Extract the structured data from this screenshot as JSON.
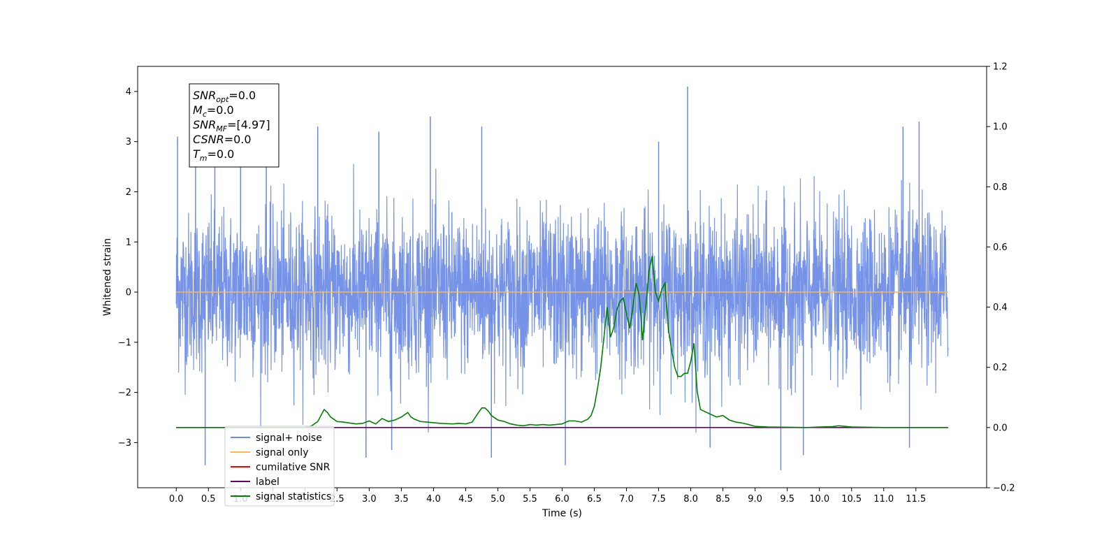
{
  "chart_data": {
    "type": "line",
    "xlabel": "Time (s)",
    "ylabel": "Whitened strain",
    "xlim": [
      -0.6,
      12.6
    ],
    "ylim": [
      -3.9,
      4.5
    ],
    "y2lim": [
      -0.2,
      1.2
    ],
    "x_ticks": [
      0.0,
      0.5,
      1.0,
      1.5,
      2.0,
      2.5,
      3.0,
      3.5,
      4.0,
      4.5,
      5.0,
      5.5,
      6.0,
      6.5,
      7.0,
      7.5,
      8.0,
      8.5,
      9.0,
      9.5,
      10.0,
      10.5,
      11.0,
      11.5
    ],
    "x_tick_labels": [
      "0.0",
      "0.5",
      "1.0",
      "1.5",
      "2.0",
      "2.5",
      "3.0",
      "3.5",
      "4.0",
      "4.5",
      "5.0",
      "5.5",
      "6.0",
      "6.5",
      "7.0",
      "7.5",
      "8.0",
      "8.5",
      "9.0",
      "9.5",
      "10.0",
      "10.5",
      "11.0",
      "11.5"
    ],
    "y_ticks": [
      -3,
      -2,
      -1,
      0,
      1,
      2,
      3,
      4
    ],
    "y_tick_labels": [
      "−3",
      "−2",
      "−1",
      "0",
      "1",
      "2",
      "3",
      "4"
    ],
    "y2_ticks": [
      -0.2,
      0.0,
      0.2,
      0.4,
      0.6,
      0.8,
      1.0,
      1.2
    ],
    "y2_tick_labels": [
      "−0.2",
      "0.0",
      "0.2",
      "0.4",
      "0.6",
      "0.8",
      "1.0",
      "1.2"
    ],
    "legend_placement": "lower-left",
    "grid": false,
    "series": [
      {
        "name": "signal+ noise",
        "axis": "left",
        "color": "#6a8ae6",
        "style": "noise",
        "x_range": [
          0.0,
          12.0
        ],
        "spikes": [
          {
            "x": 0.02,
            "y": 3.1
          },
          {
            "x": 0.3,
            "y": 2.9
          },
          {
            "x": 0.45,
            "y": -3.45
          },
          {
            "x": 0.6,
            "y": 2.8
          },
          {
            "x": 1.0,
            "y": 3.2
          },
          {
            "x": 1.4,
            "y": 3.1
          },
          {
            "x": 2.2,
            "y": 3.3
          },
          {
            "x": 2.95,
            "y": -3.3
          },
          {
            "x": 3.15,
            "y": 3.2
          },
          {
            "x": 3.35,
            "y": -3.15
          },
          {
            "x": 3.95,
            "y": 3.5
          },
          {
            "x": 4.75,
            "y": 3.3
          },
          {
            "x": 4.9,
            "y": -3.3
          },
          {
            "x": 6.05,
            "y": -3.45
          },
          {
            "x": 7.5,
            "y": 3.0
          },
          {
            "x": 7.95,
            "y": 4.1
          },
          {
            "x": 8.3,
            "y": -3.1
          },
          {
            "x": 9.4,
            "y": -3.55
          },
          {
            "x": 9.75,
            "y": -3.25
          },
          {
            "x": 11.3,
            "y": 3.3
          },
          {
            "x": 11.55,
            "y": 3.4
          },
          {
            "x": 11.4,
            "y": -3.1
          }
        ]
      },
      {
        "name": "signal only",
        "axis": "left",
        "color": "#ffb74d",
        "x": [
          0.0,
          12.0
        ],
        "y": [
          0.0,
          0.0
        ]
      },
      {
        "name": "cumilative SNR",
        "axis": "right",
        "color": "#ff0000",
        "x": [],
        "y": []
      },
      {
        "name": "label",
        "axis": "right",
        "color": "#6a006a",
        "x": [
          0.0,
          12.0
        ],
        "y": [
          0.0,
          0.0
        ]
      },
      {
        "name": "signal statistics",
        "axis": "right",
        "color": "#008000",
        "x": [
          0.0,
          2.0,
          2.1,
          2.2,
          2.3,
          2.35,
          2.4,
          2.5,
          2.6,
          2.7,
          2.8,
          2.9,
          3.0,
          3.1,
          3.2,
          3.3,
          3.4,
          3.5,
          3.6,
          3.65,
          3.7,
          3.8,
          3.9,
          4.0,
          4.1,
          4.2,
          4.3,
          4.4,
          4.5,
          4.6,
          4.7,
          4.75,
          4.8,
          4.85,
          4.9,
          5.0,
          5.1,
          5.2,
          5.3,
          5.4,
          5.5,
          5.6,
          5.7,
          5.8,
          5.9,
          6.0,
          6.1,
          6.2,
          6.3,
          6.4,
          6.45,
          6.5,
          6.55,
          6.6,
          6.65,
          6.7,
          6.75,
          6.8,
          6.85,
          6.9,
          6.95,
          7.0,
          7.05,
          7.1,
          7.15,
          7.2,
          7.25,
          7.3,
          7.35,
          7.4,
          7.45,
          7.5,
          7.55,
          7.6,
          7.65,
          7.7,
          7.75,
          7.8,
          7.85,
          7.9,
          7.95,
          8.0,
          8.05,
          8.1,
          8.15,
          8.2,
          8.3,
          8.4,
          8.5,
          8.6,
          8.7,
          8.8,
          8.9,
          9.0,
          9.2,
          9.5,
          9.8,
          10.0,
          10.2,
          10.3,
          10.5,
          11.0,
          11.5,
          12.0
        ],
        "y": [
          0.0,
          0.0,
          0.005,
          0.02,
          0.06,
          0.05,
          0.035,
          0.02,
          0.018,
          0.015,
          0.012,
          0.014,
          0.022,
          0.012,
          0.03,
          0.02,
          0.025,
          0.035,
          0.05,
          0.035,
          0.028,
          0.02,
          0.018,
          0.016,
          0.014,
          0.013,
          0.012,
          0.014,
          0.012,
          0.018,
          0.05,
          0.065,
          0.065,
          0.055,
          0.04,
          0.025,
          0.02,
          0.012,
          0.008,
          0.006,
          0.01,
          0.008,
          0.01,
          0.008,
          0.01,
          0.012,
          0.022,
          0.022,
          0.018,
          0.028,
          0.04,
          0.07,
          0.13,
          0.2,
          0.3,
          0.4,
          0.3,
          0.33,
          0.39,
          0.42,
          0.43,
          0.38,
          0.33,
          0.4,
          0.48,
          0.44,
          0.29,
          0.4,
          0.52,
          0.57,
          0.45,
          0.42,
          0.46,
          0.48,
          0.33,
          0.26,
          0.2,
          0.17,
          0.17,
          0.18,
          0.18,
          0.22,
          0.28,
          0.12,
          0.06,
          0.055,
          0.045,
          0.035,
          0.04,
          0.025,
          0.018,
          0.015,
          0.01,
          0.004,
          0.002,
          0.001,
          0.0,
          0.002,
          0.003,
          0.006,
          0.002,
          0.0,
          0.0,
          0.0
        ]
      }
    ],
    "info_box": {
      "lines": [
        {
          "main": "SNR",
          "sub": "opt",
          "rest": "=0.0"
        },
        {
          "main": "M",
          "sub": "c",
          "rest": "=0.0"
        },
        {
          "main": "SNR",
          "sub": "MF",
          "rest": "=[4.97]"
        },
        {
          "main": "CSNR",
          "sub": "",
          "rest": "=0.0"
        },
        {
          "main": "T",
          "sub": "m",
          "rest": "=0.0"
        }
      ]
    }
  }
}
